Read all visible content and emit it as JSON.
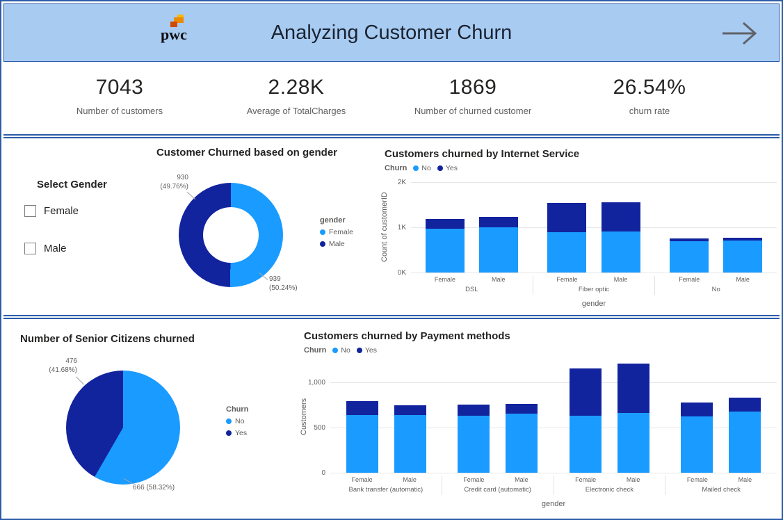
{
  "header": {
    "logo_text": "pwc",
    "title": "Analyzing Customer Churn"
  },
  "kpis": [
    {
      "value": "7043",
      "label": "Number of customers"
    },
    {
      "value": "2.28K",
      "label": "Average of TotalCharges"
    },
    {
      "value": "1869",
      "label": "Number of churned customer"
    },
    {
      "value": "26.54%",
      "label": "churn rate"
    }
  ],
  "gender_filter": {
    "title": "Select Gender",
    "options": [
      {
        "label": "Female",
        "checked": false
      },
      {
        "label": "Male",
        "checked": false
      }
    ]
  },
  "colors": {
    "churn_no_light_blue": "#1A9BFF",
    "churn_yes_dark_blue": "#12239E",
    "header_background": "#A8CBF2",
    "panel_border_blue": "#2B5CA8"
  },
  "chart_data": [
    {
      "id": "gender_donut",
      "type": "pie",
      "donut": true,
      "title": "Customer Churned based on gender",
      "legend_title": "gender",
      "legend_position": "right",
      "slices": [
        {
          "name": "Female",
          "value": 939,
          "pct": "50.24%",
          "color": "#1A9BFF"
        },
        {
          "name": "Male",
          "value": 930,
          "pct": "49.76%",
          "color": "#12239E"
        }
      ],
      "callout_male_l1": "930",
      "callout_male_l2": "(49.76%)",
      "callout_female_l1": "939",
      "callout_female_l2": "(50.24%)"
    },
    {
      "id": "internet",
      "type": "bar",
      "stacked": true,
      "title": "Customers churned by Internet Service",
      "legend_title": "Churn",
      "legend_position": "top",
      "xlabel": "gender",
      "ylabel": "Count of customerID",
      "ymax": 2000,
      "yticks": [
        {
          "value": 0,
          "label": "0K"
        },
        {
          "value": 1000,
          "label": "1K"
        },
        {
          "value": 2000,
          "label": "2K"
        }
      ],
      "series": [
        {
          "name": "No",
          "color": "#1A9BFF"
        },
        {
          "name": "Yes",
          "color": "#12239E"
        }
      ],
      "groups": [
        {
          "label": "DSL",
          "bars": [
            {
              "label": "Female",
              "values": [
                965,
                219
              ]
            },
            {
              "label": "Male",
              "values": [
                997,
                240
              ]
            }
          ]
        },
        {
          "label": "Fiber optic",
          "bars": [
            {
              "label": "Female",
              "values": [
                889,
                654
              ]
            },
            {
              "label": "Male",
              "values": [
                910,
                643
              ]
            }
          ]
        },
        {
          "label": "No",
          "bars": [
            {
              "label": "Female",
              "values": [
                699,
                56
              ]
            },
            {
              "label": "Male",
              "values": [
                714,
                57
              ]
            }
          ]
        }
      ]
    },
    {
      "id": "senior_pie",
      "type": "pie",
      "donut": false,
      "title": "Number of Senior Citizens churned",
      "legend_title": "Churn",
      "legend_position": "right",
      "slices": [
        {
          "name": "No",
          "value": 666,
          "pct": "58.32%",
          "color": "#1A9BFF"
        },
        {
          "name": "Yes",
          "value": 476,
          "pct": "41.68%",
          "color": "#12239E"
        }
      ],
      "callout_yes_l1": "476",
      "callout_yes_l2": "(41.68%)",
      "callout_no": "666 (58.32%)"
    },
    {
      "id": "payment",
      "type": "bar",
      "stacked": true,
      "title": "Customers churned by Payment methods",
      "legend_title": "Churn",
      "legend_position": "top",
      "xlabel": "gender",
      "ylabel": "Customers",
      "ymax": 1250,
      "yticks": [
        {
          "value": 0,
          "label": "0"
        },
        {
          "value": 500,
          "label": "500"
        },
        {
          "value": 1000,
          "label": "1,000"
        }
      ],
      "series": [
        {
          "name": "No",
          "color": "#1A9BFF"
        },
        {
          "name": "Yes",
          "color": "#12239E"
        }
      ],
      "groups": [
        {
          "label": "Bank transfer (automatic)",
          "bars": [
            {
              "label": "Female",
              "values": [
                643,
                152
              ]
            },
            {
              "label": "Male",
              "values": [
                643,
                106
              ]
            }
          ]
        },
        {
          "label": "Credit card (automatic)",
          "bars": [
            {
              "label": "Female",
              "values": [
                630,
                125
              ]
            },
            {
              "label": "Male",
              "values": [
                660,
                107
              ]
            }
          ]
        },
        {
          "label": "Electronic check",
          "bars": [
            {
              "label": "Female",
              "values": [
                630,
                525
              ]
            },
            {
              "label": "Male",
              "values": [
                664,
                546
              ]
            }
          ]
        },
        {
          "label": "Mailed check",
          "bars": [
            {
              "label": "Female",
              "values": [
                627,
                153
              ]
            },
            {
              "label": "Male",
              "values": [
                677,
                155
              ]
            }
          ]
        }
      ]
    }
  ]
}
